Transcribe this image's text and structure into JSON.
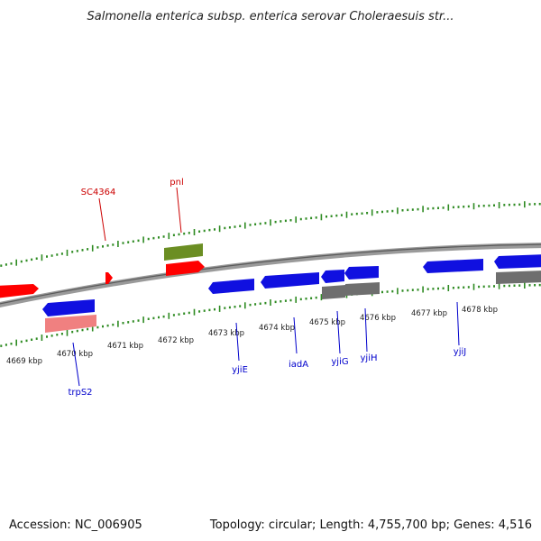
{
  "title": "Salmonella enterica subsp. enterica serovar Choleraesuis str...",
  "footer": {
    "accession": "Accession: NC_006905",
    "summary": "Topology: circular; Length: 4,755,700 bp; Genes: 4,516"
  },
  "colors": {
    "backbone": "#8a8a8a",
    "tick": "#2e8b22",
    "forward_cds": "#ff0000",
    "forward_other": "#6b8e23",
    "reverse_cds": "#1010e0",
    "reverse_other": "#6e6e6e",
    "pseudo": "#f08080",
    "label_forward": "#cc0000",
    "label_reverse": "#0000cc"
  },
  "scale": {
    "labels": [
      "4669 kbp",
      "4670 kbp",
      "4671 kbp",
      "4672 kbp",
      "4673 kbp",
      "4674 kbp",
      "4675 kbp",
      "4676 kbp",
      "4677 kbp",
      "4678 kbp"
    ]
  },
  "genes": [
    {
      "name": "SC4364",
      "strand": "forward"
    },
    {
      "name": "pnl",
      "strand": "forward"
    },
    {
      "name": "trpS2",
      "strand": "reverse"
    },
    {
      "name": "yjiE",
      "strand": "reverse"
    },
    {
      "name": "iadA",
      "strand": "reverse"
    },
    {
      "name": "yjiG",
      "strand": "reverse"
    },
    {
      "name": "yjiH",
      "strand": "reverse"
    },
    {
      "name": "yjiJ",
      "strand": "reverse"
    }
  ]
}
